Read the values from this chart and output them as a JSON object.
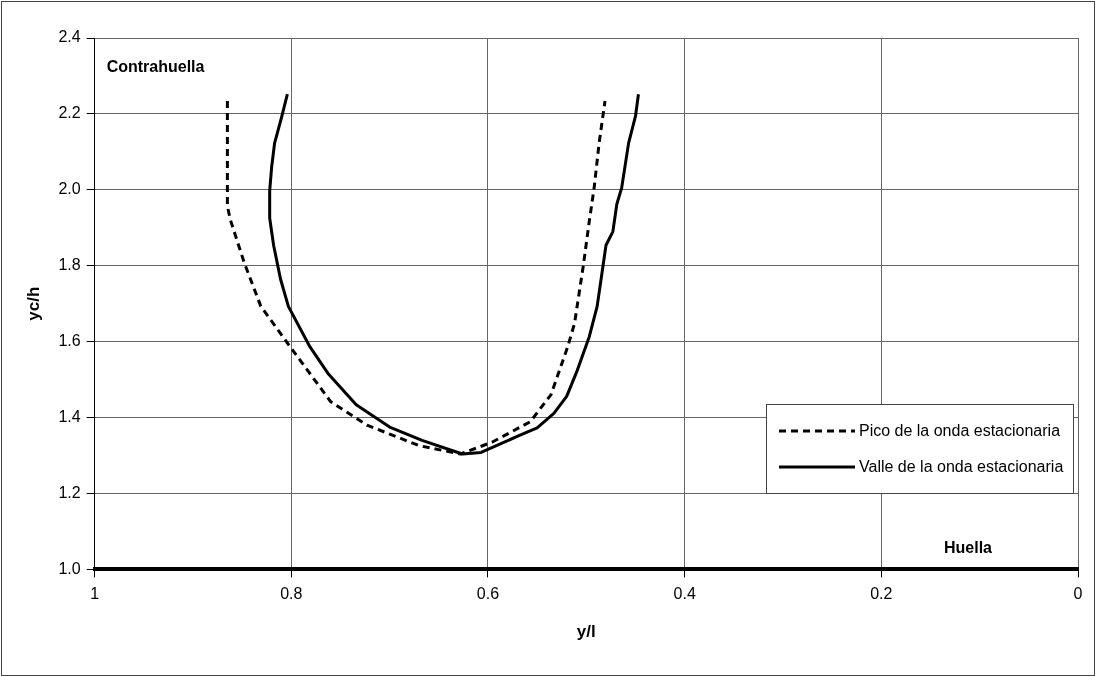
{
  "chart_data": {
    "type": "line",
    "xlabel": "y/l",
    "ylabel": "yc/h",
    "annotations": [
      "Contrahuella",
      "Huella"
    ],
    "xlim": [
      1,
      0
    ],
    "xticks": [
      1,
      0.8,
      0.6,
      0.4,
      0.2,
      0
    ],
    "ylim": [
      1,
      2.4
    ],
    "yticks": [
      {
        "value": 1,
        "label": "1.0"
      },
      {
        "value": 1.2,
        "label": "1.2"
      },
      {
        "value": 1.4,
        "label": "1.4"
      },
      {
        "value": 1.6,
        "label": "1.6"
      },
      {
        "value": 1.8,
        "label": "1.8"
      },
      {
        "value": 2,
        "label": "2.0"
      },
      {
        "value": 2.2,
        "label": "2.2"
      },
      {
        "value": 2.4,
        "label": "2.4"
      }
    ],
    "grid": true,
    "legend": "bottom right",
    "marker": "none",
    "series": [
      {
        "name": "Pico de la onda estacionaria",
        "color": "#000000",
        "line_style": "dashed",
        "x": [
          0.865,
          0.865,
          0.862,
          0.848,
          0.831,
          0.801,
          0.76,
          0.723,
          0.67,
          0.628,
          0.596,
          0.557,
          0.536,
          0.519,
          0.512,
          0.503,
          0.497,
          0.492,
          0.487,
          0.481
        ],
        "values": [
          2.234,
          1.957,
          1.921,
          1.809,
          1.693,
          1.586,
          1.442,
          1.38,
          1.326,
          1.304,
          1.335,
          1.389,
          1.46,
          1.586,
          1.648,
          1.801,
          1.917,
          2.006,
          2.123,
          2.234
        ]
      },
      {
        "name": "Valle de la onda estacionaria",
        "color": "#000000",
        "line_style": "solid",
        "x": [
          0.804,
          0.81,
          0.817,
          0.82,
          0.822,
          0.822,
          0.818,
          0.811,
          0.803,
          0.781,
          0.762,
          0.734,
          0.7,
          0.667,
          0.626,
          0.607,
          0.568,
          0.55,
          0.533,
          0.52,
          0.51,
          0.497,
          0.489,
          0.483,
          0.48,
          0.473,
          0.469,
          0.464,
          0.457,
          0.45,
          0.447
        ],
        "values": [
          2.252,
          2.19,
          2.123,
          2.06,
          1.997,
          1.926,
          1.854,
          1.765,
          1.693,
          1.586,
          1.514,
          1.434,
          1.375,
          1.34,
          1.304,
          1.308,
          1.353,
          1.373,
          1.411,
          1.456,
          1.519,
          1.613,
          1.693,
          1.8,
          1.854,
          1.89,
          1.962,
          2.006,
          2.123,
          2.194,
          2.252
        ]
      }
    ]
  }
}
